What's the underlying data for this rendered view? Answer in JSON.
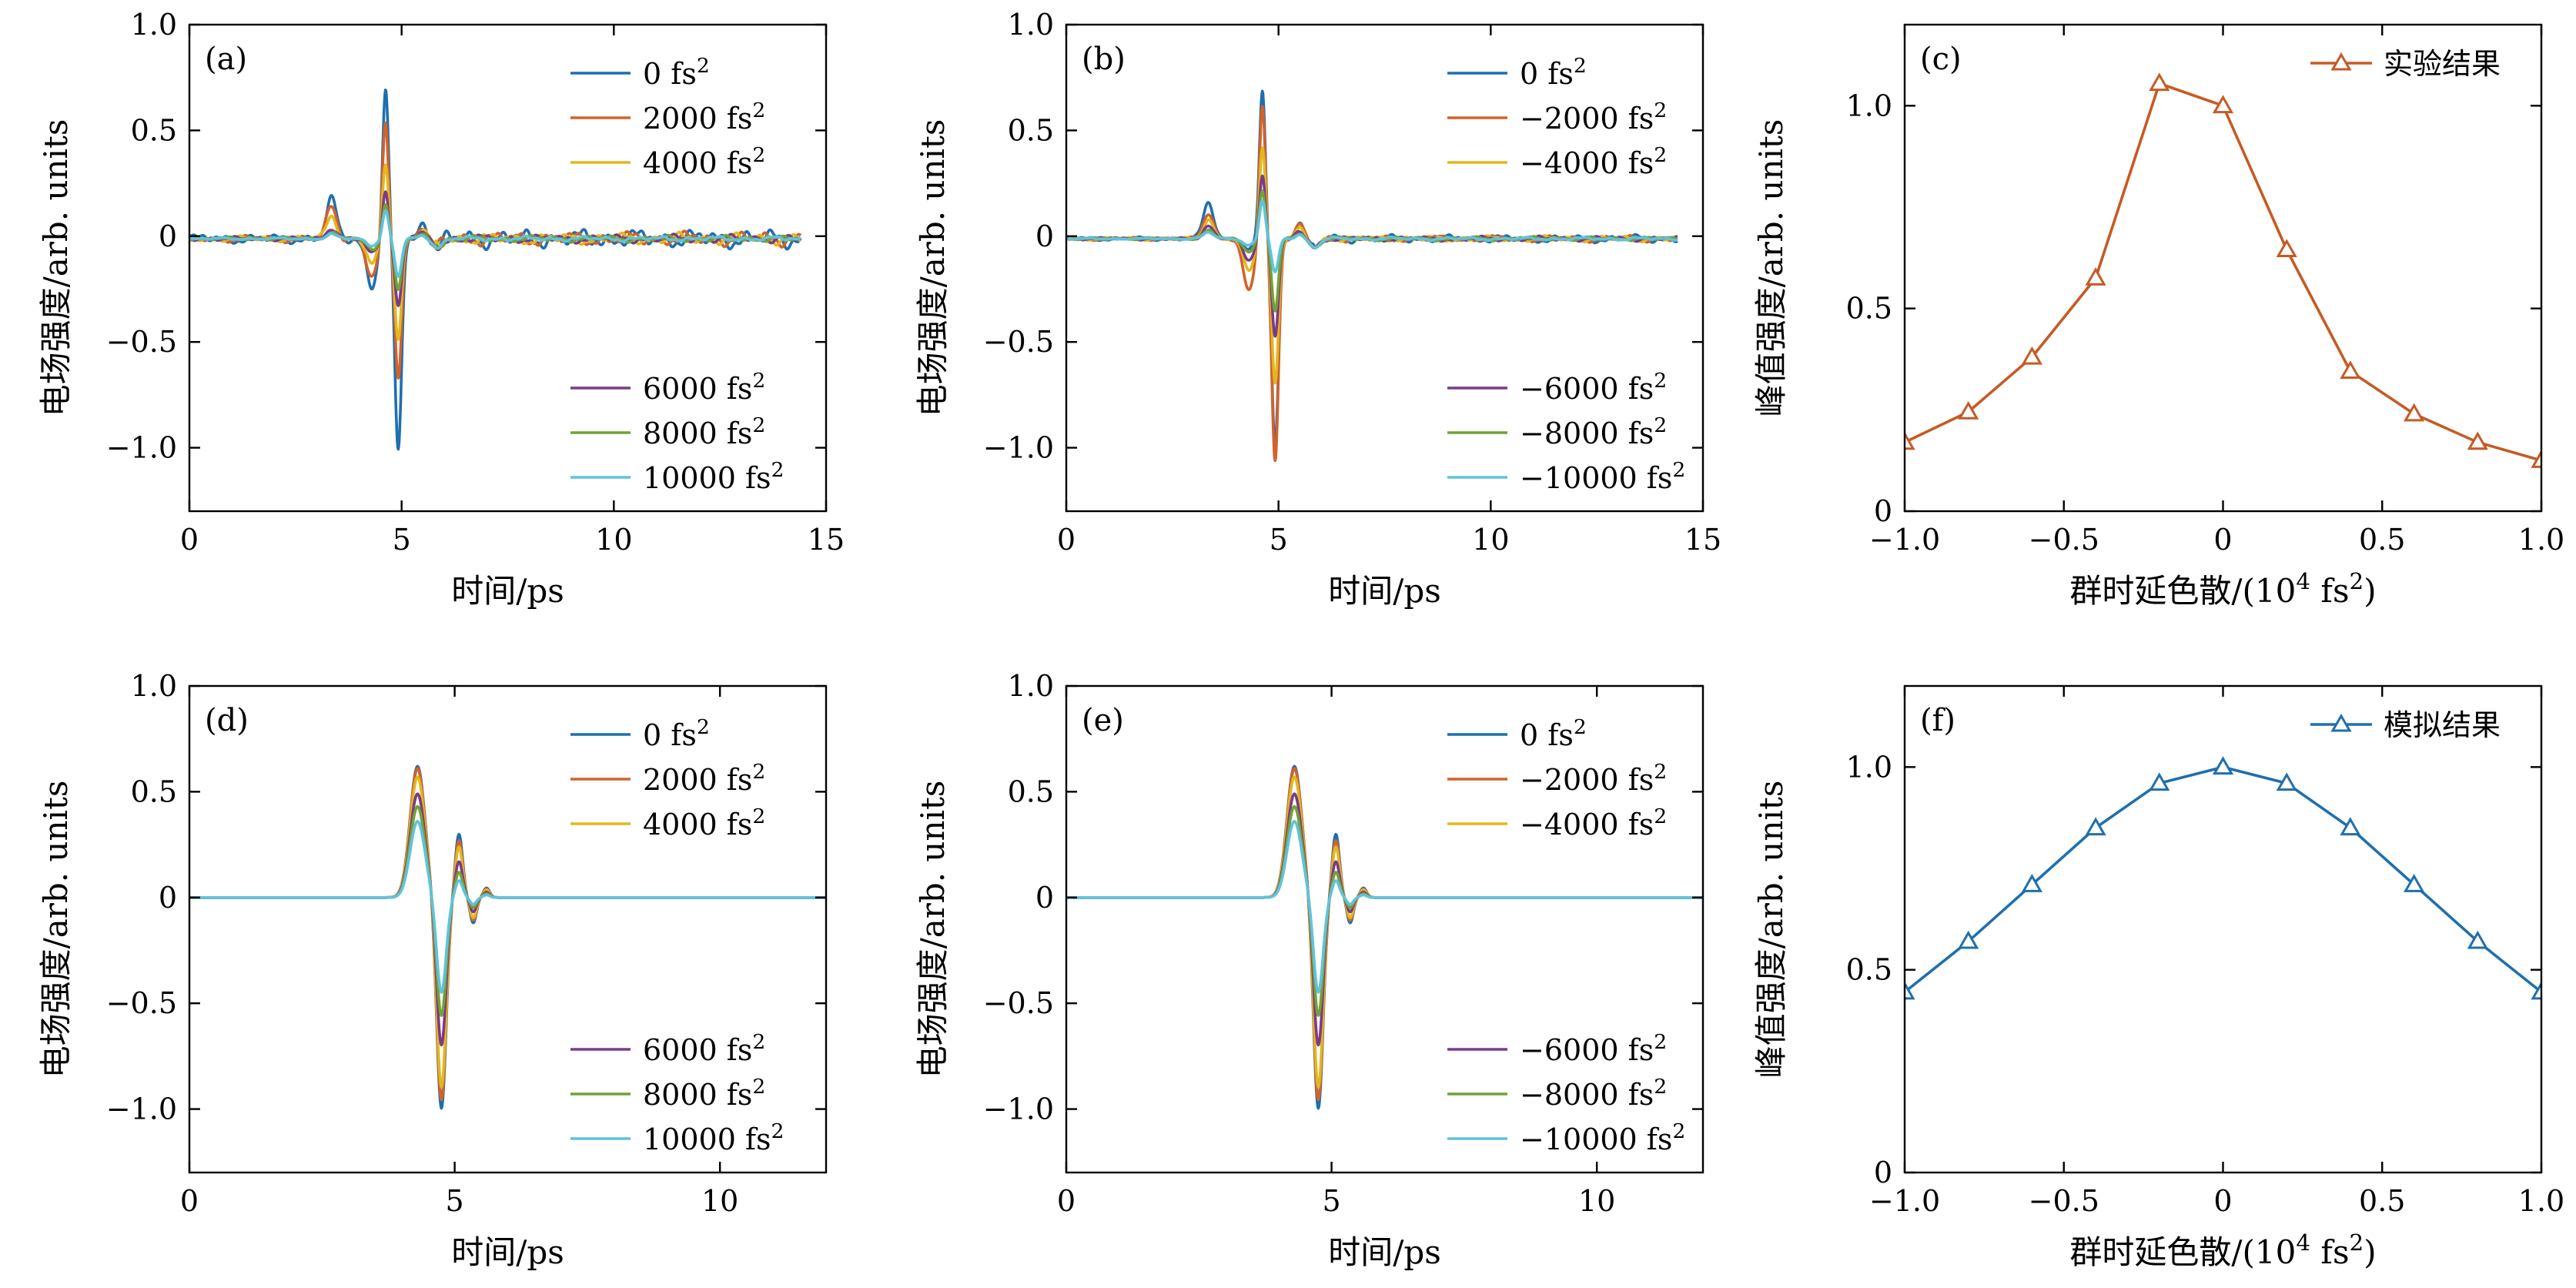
{
  "colors": {
    "series": [
      "#1f6fae",
      "#d2622a",
      "#e3b71e",
      "#7b3a8c",
      "#73a235",
      "#5fc3dc"
    ],
    "exp": "#c65a24",
    "sim": "#1f6fae"
  },
  "chart_data": [
    {
      "type": "line",
      "panel_label": "(a)",
      "xlabel": "时间/ps",
      "ylabel": "电场强度/arb. units",
      "xlim": [
        0,
        15
      ],
      "ylim": [
        -1.3,
        1.0
      ],
      "xticks": [
        0,
        5,
        10,
        15
      ],
      "xtick_labels": [
        "0",
        "5",
        "10",
        "15"
      ],
      "yticks": [
        -1.0,
        -0.5,
        0,
        0.5,
        1.0
      ],
      "ytick_labels": [
        "−1.0",
        "−0.5",
        "0",
        "0.5",
        "1.0"
      ],
      "legend_top": [
        {
          "text": "0 fs",
          "sup": "2"
        },
        {
          "text": "2000 fs",
          "sup": "2"
        },
        {
          "text": "4000 fs",
          "sup": "2"
        }
      ],
      "legend_bottom": [
        {
          "text": "6000 fs",
          "sup": "2"
        },
        {
          "text": "8000 fs",
          "sup": "2"
        },
        {
          "text": "10000 fs",
          "sup": "2"
        }
      ],
      "x_end": 14.4,
      "series_params": [
        {
          "name": "0 fs²",
          "p1": -0.22,
          "p2": 0.18,
          "n": 0.7,
          "m": -1.0,
          "a": 0.12
        },
        {
          "name": "2000 fs²",
          "p1": -0.18,
          "p2": 0.15,
          "n": 0.54,
          "m": -0.65,
          "a": 0.09
        },
        {
          "name": "4000 fs²",
          "p1": -0.12,
          "p2": 0.11,
          "n": 0.36,
          "m": -0.47,
          "a": 0.07
        },
        {
          "name": "6000 fs²",
          "p1": -0.07,
          "p2": 0.05,
          "n": 0.23,
          "m": -0.32,
          "a": 0.05
        },
        {
          "name": "8000 fs²",
          "p1": -0.05,
          "p2": 0.03,
          "n": 0.17,
          "m": -0.24,
          "a": 0.04
        },
        {
          "name": "10000 fs²",
          "p1": -0.03,
          "p2": 0.02,
          "n": 0.13,
          "m": -0.18,
          "a": 0.03
        }
      ]
    },
    {
      "type": "line",
      "panel_label": "(b)",
      "xlabel": "时间/ps",
      "ylabel": "电场强度/arb. units",
      "xlim": [
        0,
        15
      ],
      "ylim": [
        -1.3,
        1.0
      ],
      "xticks": [
        0,
        5,
        10,
        15
      ],
      "xtick_labels": [
        "0",
        "5",
        "10",
        "15"
      ],
      "yticks": [
        -1.0,
        -0.5,
        0,
        0.5,
        1.0
      ],
      "ytick_labels": [
        "−1.0",
        "−0.5",
        "0",
        "0.5",
        "1.0"
      ],
      "legend_top": [
        {
          "text": "0 fs",
          "sup": "2"
        },
        {
          "text": "−2000 fs",
          "sup": "2"
        },
        {
          "text": "−4000 fs",
          "sup": "2"
        }
      ],
      "legend_bottom": [
        {
          "text": "−6000 fs",
          "sup": "2"
        },
        {
          "text": "−8000 fs",
          "sup": "2"
        },
        {
          "text": "−10000 fs",
          "sup": "2"
        }
      ],
      "x_end": 14.4,
      "series_params": [
        {
          "name": "0 fs²",
          "p1": -0.05,
          "p2": 0.17,
          "n": 0.7,
          "m": -0.98,
          "a": 0.05
        },
        {
          "name": "−2000 fs²",
          "p1": -0.25,
          "p2": 0.12,
          "n": 0.64,
          "m": -1.05,
          "a": 0.04
        },
        {
          "name": "−4000 fs²",
          "p1": -0.15,
          "p2": 0.09,
          "n": 0.44,
          "m": -0.68,
          "a": 0.035
        },
        {
          "name": "−6000 fs²",
          "p1": -0.1,
          "p2": 0.06,
          "n": 0.3,
          "m": -0.46,
          "a": 0.03
        },
        {
          "name": "−8000 fs²",
          "p1": -0.06,
          "p2": 0.04,
          "n": 0.23,
          "m": -0.34,
          "a": 0.025
        },
        {
          "name": "−10000 fs²",
          "p1": -0.03,
          "p2": 0.03,
          "n": 0.18,
          "m": -0.16,
          "a": 0.02
        }
      ]
    },
    {
      "type": "line",
      "panel_label": "(c)",
      "xlabel": "群时延色散/(10",
      "xlabel_sup": "4",
      "xlabel_tail": " fs",
      "xlabel_sup2": "2",
      "xlabel_end": ")",
      "ylabel": "峰值强度/arb. units",
      "xlim": [
        -1.0,
        1.0
      ],
      "ylim": [
        0,
        1.2
      ],
      "xticks": [
        -1.0,
        -0.5,
        0,
        0.5,
        1.0
      ],
      "xtick_labels": [
        "−1.0",
        "−0.5",
        "0",
        "0.5",
        "1.0"
      ],
      "yticks": [
        0,
        0.5,
        1.0
      ],
      "ytick_labels": [
        "0",
        "0.5",
        "1.0"
      ],
      "legend": "实验结果",
      "x": [
        -1.0,
        -0.8,
        -0.6,
        -0.4,
        -0.2,
        0,
        0.2,
        0.4,
        0.6,
        0.8,
        1.0
      ],
      "y": [
        0.17,
        0.245,
        0.38,
        0.575,
        1.055,
        1.0,
        0.645,
        0.345,
        0.24,
        0.17,
        0.125
      ]
    },
    {
      "type": "line",
      "panel_label": "(d)",
      "xlabel": "时间/ps",
      "ylabel": "电场强度/arb. units",
      "xlim": [
        0,
        12
      ],
      "ylim": [
        -1.3,
        1.0
      ],
      "xticks": [
        0,
        5,
        10
      ],
      "xtick_labels": [
        "0",
        "5",
        "10"
      ],
      "yticks": [
        -1.0,
        -0.5,
        0,
        0.5,
        1.0
      ],
      "ytick_labels": [
        "−1.0",
        "−0.5",
        "0",
        "0.5",
        "1.0"
      ],
      "legend_top": [
        {
          "text": "0 fs",
          "sup": "2"
        },
        {
          "text": "2000 fs",
          "sup": "2"
        },
        {
          "text": "4000 fs",
          "sup": "2"
        }
      ],
      "legend_bottom": [
        {
          "text": "6000 fs",
          "sup": "2"
        },
        {
          "text": "8000 fs",
          "sup": "2"
        },
        {
          "text": "10000 fs",
          "sup": "2"
        }
      ],
      "x_end": 12,
      "series_params": [
        {
          "name": "0 fs²",
          "p": 0.62,
          "n": -1.0,
          "q": 0.3
        },
        {
          "name": "2000 fs²",
          "p": 0.61,
          "n": -0.96,
          "q": 0.27
        },
        {
          "name": "4000 fs²",
          "p": 0.57,
          "n": -0.9,
          "q": 0.24
        },
        {
          "name": "6000 fs²",
          "p": 0.49,
          "n": -0.7,
          "q": 0.17
        },
        {
          "name": "8000 fs²",
          "p": 0.43,
          "n": -0.56,
          "q": 0.12
        },
        {
          "name": "10000 fs²",
          "p": 0.36,
          "n": -0.45,
          "q": 0.08
        }
      ]
    },
    {
      "type": "line",
      "panel_label": "(e)",
      "xlabel": "时间/ps",
      "ylabel": "电场强度/arb. units",
      "xlim": [
        0,
        12
      ],
      "ylim": [
        -1.3,
        1.0
      ],
      "xticks": [
        0,
        5,
        10
      ],
      "xtick_labels": [
        "0",
        "5",
        "10"
      ],
      "yticks": [
        -1.0,
        -0.5,
        0,
        0.5,
        1.0
      ],
      "ytick_labels": [
        "−1.0",
        "−0.5",
        "0",
        "0.5",
        "1.0"
      ],
      "legend_top": [
        {
          "text": "0 fs",
          "sup": "2"
        },
        {
          "text": "−2000 fs",
          "sup": "2"
        },
        {
          "text": "−4000 fs",
          "sup": "2"
        }
      ],
      "legend_bottom": [
        {
          "text": "−6000 fs",
          "sup": "2"
        },
        {
          "text": "−8000 fs",
          "sup": "2"
        },
        {
          "text": "−10000 fs",
          "sup": "2"
        }
      ],
      "x_end": 12,
      "series_params": [
        {
          "name": "0 fs²",
          "p": 0.62,
          "n": -1.0,
          "q": 0.3
        },
        {
          "name": "−2000 fs²",
          "p": 0.61,
          "n": -0.96,
          "q": 0.27
        },
        {
          "name": "−4000 fs²",
          "p": 0.57,
          "n": -0.9,
          "q": 0.24
        },
        {
          "name": "−6000 fs²",
          "p": 0.49,
          "n": -0.7,
          "q": 0.17
        },
        {
          "name": "−8000 fs²",
          "p": 0.43,
          "n": -0.56,
          "q": 0.12
        },
        {
          "name": "−10000 fs²",
          "p": 0.36,
          "n": -0.45,
          "q": 0.08
        }
      ]
    },
    {
      "type": "line",
      "panel_label": "(f)",
      "xlabel": "群时延色散/(10",
      "xlabel_sup": "4",
      "xlabel_tail": " fs",
      "xlabel_sup2": "2",
      "xlabel_end": ")",
      "ylabel": "峰值强度/arb. units",
      "xlim": [
        -1.0,
        1.0
      ],
      "ylim": [
        0,
        1.2
      ],
      "xticks": [
        -1.0,
        -0.5,
        0,
        0.5,
        1.0
      ],
      "xtick_labels": [
        "−1.0",
        "−0.5",
        "0",
        "0.5",
        "1.0"
      ],
      "yticks": [
        0,
        0.5,
        1.0
      ],
      "ytick_labels": [
        "0",
        "0.5",
        "1.0"
      ],
      "legend": "模拟结果",
      "x": [
        -1.0,
        -0.8,
        -0.6,
        -0.4,
        -0.2,
        0,
        0.2,
        0.4,
        0.6,
        0.8,
        1.0
      ],
      "y": [
        0.445,
        0.57,
        0.71,
        0.85,
        0.96,
        1.0,
        0.96,
        0.85,
        0.71,
        0.57,
        0.445
      ]
    }
  ]
}
